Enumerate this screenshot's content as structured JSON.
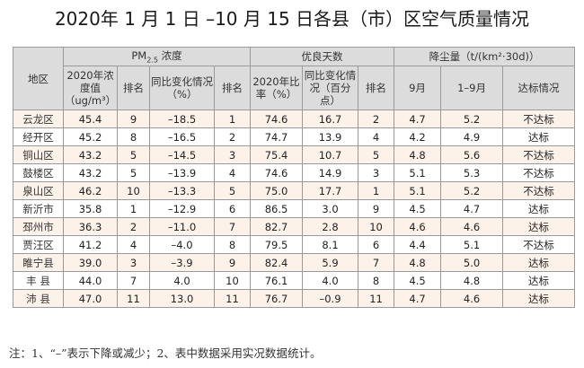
{
  "title": "2020年 1 月 1 日 –10 月 15 日各县（市）区空气质量情况",
  "header": {
    "area": "地区",
    "pm_group_prefix": "PM",
    "pm_group_sub": "2.5",
    "pm_group_suffix": " 浓度",
    "good_days_group": "优良天数",
    "dust_group": "降尘量（t/(km²·30d)）",
    "pm_conc": "2020年浓度值（ug/m³）",
    "pm_rank": "排名",
    "pm_change": "同比变化情况（%）",
    "pm_change_rank": "排名",
    "good_ratio": "2020年比率（%）",
    "good_change": "同比变化情况（百分点）",
    "good_rank": "排名",
    "dust_sep": "9月",
    "dust_jan_sep": "1–9月",
    "dust_status": "达标情况"
  },
  "rows": [
    {
      "area": "云龙区",
      "pm_conc": "45.4",
      "pm_rank": "9",
      "pm_change": "–18.5",
      "pm_change_rank": "1",
      "good_ratio": "74.6",
      "good_change": "16.7",
      "good_rank": "2",
      "dust_sep": "4.7",
      "dust_jan_sep": "5.2",
      "dust_status": "不达标"
    },
    {
      "area": "经开区",
      "pm_conc": "45.2",
      "pm_rank": "8",
      "pm_change": "–16.5",
      "pm_change_rank": "2",
      "good_ratio": "74.7",
      "good_change": "13.9",
      "good_rank": "4",
      "dust_sep": "4.2",
      "dust_jan_sep": "4.9",
      "dust_status": "达标"
    },
    {
      "area": "铜山区",
      "pm_conc": "43.2",
      "pm_rank": "5",
      "pm_change": "–14.5",
      "pm_change_rank": "3",
      "good_ratio": "75.4",
      "good_change": "10.7",
      "good_rank": "5",
      "dust_sep": "4.8",
      "dust_jan_sep": "5.6",
      "dust_status": "不达标"
    },
    {
      "area": "鼓楼区",
      "pm_conc": "43.2",
      "pm_rank": "5",
      "pm_change": "–13.9",
      "pm_change_rank": "4",
      "good_ratio": "74.6",
      "good_change": "14.9",
      "good_rank": "3",
      "dust_sep": "5.1",
      "dust_jan_sep": "5.3",
      "dust_status": "不达标"
    },
    {
      "area": "泉山区",
      "pm_conc": "46.2",
      "pm_rank": "10",
      "pm_change": "–13.3",
      "pm_change_rank": "5",
      "good_ratio": "75.0",
      "good_change": "17.7",
      "good_rank": "1",
      "dust_sep": "5.1",
      "dust_jan_sep": "5.2",
      "dust_status": "不达标"
    },
    {
      "area": "新沂市",
      "pm_conc": "35.8",
      "pm_rank": "1",
      "pm_change": "–12.9",
      "pm_change_rank": "6",
      "good_ratio": "86.5",
      "good_change": "3.0",
      "good_rank": "9",
      "dust_sep": "4.5",
      "dust_jan_sep": "4.7",
      "dust_status": "达标"
    },
    {
      "area": "邳州市",
      "pm_conc": "36.3",
      "pm_rank": "2",
      "pm_change": "–11.0",
      "pm_change_rank": "7",
      "good_ratio": "82.7",
      "good_change": "2.8",
      "good_rank": "10",
      "dust_sep": "4.6",
      "dust_jan_sep": "4.6",
      "dust_status": "达标"
    },
    {
      "area": "贾汪区",
      "pm_conc": "41.2",
      "pm_rank": "4",
      "pm_change": "–4.0",
      "pm_change_rank": "8",
      "good_ratio": "79.5",
      "good_change": "8.1",
      "good_rank": "6",
      "dust_sep": "4.4",
      "dust_jan_sep": "5.1",
      "dust_status": "不达标"
    },
    {
      "area": "睢宁县",
      "pm_conc": "39.0",
      "pm_rank": "3",
      "pm_change": "–3.9",
      "pm_change_rank": "9",
      "good_ratio": "82.4",
      "good_change": "5.9",
      "good_rank": "7",
      "dust_sep": "4.8",
      "dust_jan_sep": "5.0",
      "dust_status": "达标"
    },
    {
      "area": "丰 县",
      "pm_conc": "44.0",
      "pm_rank": "7",
      "pm_change": "4.0",
      "pm_change_rank": "10",
      "good_ratio": "76.1",
      "good_change": "4.0",
      "good_rank": "8",
      "dust_sep": "4.5",
      "dust_jan_sep": "4.8",
      "dust_status": "达标"
    },
    {
      "area": "沛 县",
      "pm_conc": "47.0",
      "pm_rank": "11",
      "pm_change": "13.0",
      "pm_change_rank": "11",
      "good_ratio": "76.7",
      "good_change": "–0.9",
      "good_rank": "11",
      "dust_sep": "4.7",
      "dust_jan_sep": "4.6",
      "dust_status": "达标"
    }
  ],
  "note": "注：1、“–”表示下降或减少；2、表中数据采用实况数据统计。",
  "colors": {
    "header_bg": "#dcdcdc",
    "row_odd_bg": "#fdf2ea",
    "border": "#9a9a9a"
  }
}
